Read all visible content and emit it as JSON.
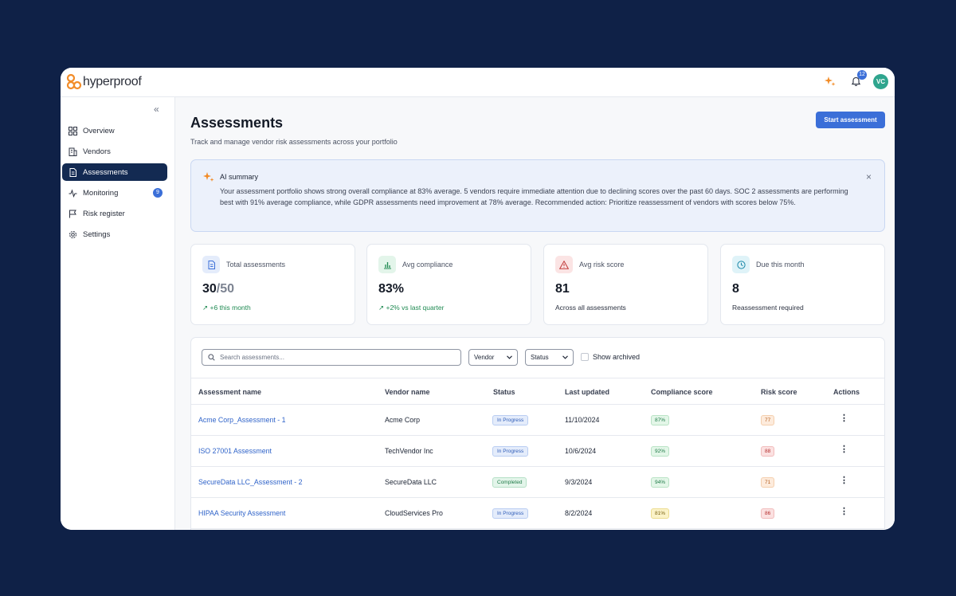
{
  "app": {
    "logo_text": "hyperproof",
    "notification_count": "12",
    "avatar_initials": "VC"
  },
  "sidebar": {
    "collapse_icon": "«",
    "items": [
      {
        "label": "Overview",
        "icon": "grid-icon"
      },
      {
        "label": "Vendors",
        "icon": "building-icon"
      },
      {
        "label": "Assessments",
        "icon": "document-icon",
        "active": true
      },
      {
        "label": "Monitoring",
        "icon": "activity-icon",
        "badge": "9"
      },
      {
        "label": "Risk register",
        "icon": "flag-icon"
      },
      {
        "label": "Settings",
        "icon": "gear-icon"
      }
    ]
  },
  "page": {
    "title": "Assessments",
    "subtitle": "Track and manage vendor risk assessments across your portfolio",
    "primary_button": "Start assessment"
  },
  "ai_summary": {
    "title": "AI summary",
    "text": "Your assessment portfolio shows strong overall compliance at 83% average. 5 vendors require immediate attention due to declining scores over the past 60 days. SOC 2 assessments are performing best with 91% average compliance, while GDPR assessments need improvement at 78% average. Recommended action: Prioritize reassessment of vendors with scores below 75%.",
    "close_icon": "×"
  },
  "stats": [
    {
      "label": "Total assessments",
      "value": "30",
      "value_suffix": "/50",
      "foot": "+6 this month",
      "trend": "up"
    },
    {
      "label": "Avg compliance",
      "value": "83%",
      "value_suffix": "",
      "foot": "+2% vs last quarter",
      "trend": "up"
    },
    {
      "label": "Avg risk score",
      "value": "81",
      "value_suffix": "",
      "foot": "Across all assessments",
      "trend": ""
    },
    {
      "label": "Due this month",
      "value": "8",
      "value_suffix": "",
      "foot": "Reassessment required",
      "trend": ""
    }
  ],
  "colors": {
    "accent": "#3b6fd8",
    "nav_active": "#132a52",
    "background": "#0f2147"
  },
  "table": {
    "search_placeholder": "Search assessments...",
    "filter_vendor": "Vendor",
    "filter_status": "Status",
    "show_archived": "Show archived",
    "columns": [
      "Assessment name",
      "Vendor name",
      "Status",
      "Last updated",
      "Compliance score",
      "Risk score",
      "Actions"
    ],
    "rows": [
      {
        "name": "Acme Corp_Assessment - 1",
        "vendor": "Acme Corp",
        "status": "In Progress",
        "updated": "11/10/2024",
        "compliance": "87%",
        "risk": "77"
      },
      {
        "name": "ISO 27001 Assessment",
        "vendor": "TechVendor Inc",
        "status": "In Progress",
        "updated": "10/6/2024",
        "compliance": "92%",
        "risk": "88"
      },
      {
        "name": "SecureData LLC_Assessment - 2",
        "vendor": "SecureData LLC",
        "status": "Completed",
        "updated": "9/3/2024",
        "compliance": "94%",
        "risk": "71"
      },
      {
        "name": "HIPAA Security Assessment",
        "vendor": "CloudServices Pro",
        "status": "In Progress",
        "updated": "8/2/2024",
        "compliance": "81%",
        "risk": "86"
      }
    ]
  }
}
